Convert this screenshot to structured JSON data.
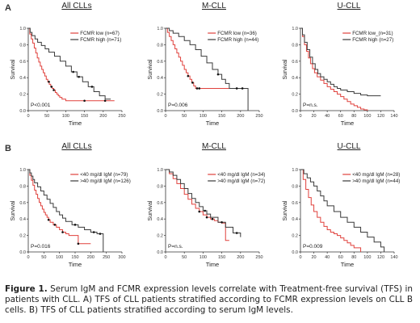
{
  "row_labels": [
    "A",
    "B"
  ],
  "caption": {
    "lead": "Figure 1.",
    "text": " Serum IgM and FCMR expression levels correlate with Treatment-free survival (TFS) in patients with CLL. A) TFS of CLL patients stratified according to FCMR expression levels on CLL B cells. B) TFS of CLL patients stratified according to serum IgM levels."
  },
  "colors": {
    "red": "#e0413c",
    "dark": "#3a3a3a"
  },
  "chart_data": [
    {
      "type": "line",
      "row": 0,
      "col": 0,
      "title": "All CLLs",
      "xlabel": "Time",
      "ylabel": "Survival",
      "xlim": [
        0,
        250
      ],
      "ylim": [
        0,
        1.0
      ],
      "xticks": [
        0,
        50,
        100,
        150,
        200,
        250
      ],
      "yticks": [
        0,
        0.2,
        0.4,
        0.6,
        0.8,
        1.0
      ],
      "pvalue": "P<0.001",
      "legend_position": "top-right",
      "series": [
        {
          "name": "FCMR low (n=67)",
          "color": "red",
          "x": [
            0,
            4,
            8,
            12,
            16,
            20,
            24,
            28,
            32,
            36,
            40,
            44,
            48,
            52,
            56,
            60,
            64,
            68,
            72,
            76,
            80,
            84,
            90,
            100,
            230
          ],
          "y": [
            1.0,
            0.93,
            0.87,
            0.82,
            0.76,
            0.7,
            0.64,
            0.59,
            0.54,
            0.5,
            0.46,
            0.42,
            0.38,
            0.35,
            0.32,
            0.29,
            0.27,
            0.25,
            0.22,
            0.2,
            0.18,
            0.16,
            0.14,
            0.12,
            0.12
          ],
          "censor_x": [
            55,
            62,
            68,
            150,
            205
          ]
        },
        {
          "name": "FCMR high (n=71)",
          "color": "dark",
          "x": [
            0,
            5,
            10,
            18,
            25,
            35,
            45,
            55,
            70,
            85,
            100,
            115,
            130,
            145,
            160,
            175,
            190,
            205,
            220
          ],
          "y": [
            1.0,
            0.95,
            0.91,
            0.87,
            0.83,
            0.79,
            0.75,
            0.71,
            0.66,
            0.6,
            0.54,
            0.47,
            0.41,
            0.35,
            0.29,
            0.23,
            0.18,
            0.14,
            0.14
          ],
          "censor_x": [
            120,
            135,
            170
          ]
        }
      ]
    },
    {
      "type": "line",
      "row": 0,
      "col": 1,
      "title": "M-CLL",
      "xlabel": "Time",
      "ylabel": "Survival",
      "xlim": [
        0,
        250
      ],
      "ylim": [
        0,
        1.0
      ],
      "xticks": [
        0,
        50,
        100,
        150,
        200,
        250
      ],
      "yticks": [
        0,
        0.2,
        0.4,
        0.6,
        0.8,
        1.0
      ],
      "pvalue": "P=0.006",
      "legend_position": "top-right",
      "series": [
        {
          "name": "FCMR low (n=36)",
          "color": "red",
          "x": [
            0,
            5,
            10,
            15,
            20,
            25,
            30,
            35,
            40,
            45,
            50,
            55,
            60,
            65,
            70,
            75,
            80,
            85,
            90,
            200
          ],
          "y": [
            1.0,
            0.95,
            0.9,
            0.85,
            0.8,
            0.75,
            0.7,
            0.65,
            0.6,
            0.55,
            0.5,
            0.46,
            0.42,
            0.38,
            0.34,
            0.3,
            0.27,
            0.27,
            0.27,
            0.27
          ],
          "censor_x": [
            60,
            72,
            84,
            90
          ]
        },
        {
          "name": "FCMR high (n=44)",
          "color": "dark",
          "x": [
            0,
            10,
            20,
            35,
            50,
            65,
            80,
            95,
            110,
            125,
            140,
            150,
            160,
            170,
            185,
            200,
            215,
            220
          ],
          "y": [
            1.0,
            0.97,
            0.94,
            0.9,
            0.85,
            0.8,
            0.74,
            0.66,
            0.58,
            0.5,
            0.44,
            0.38,
            0.33,
            0.27,
            0.27,
            0.27,
            0.27,
            0.0
          ],
          "censor_x": [
            140,
            190,
            205
          ]
        }
      ]
    },
    {
      "type": "line",
      "row": 0,
      "col": 2,
      "title": "U-CLL",
      "xlabel": "Time",
      "ylabel": "Survival",
      "xlim": [
        0,
        140
      ],
      "ylim": [
        0,
        1.0
      ],
      "xticks": [
        0,
        20,
        40,
        60,
        80,
        100,
        120,
        140
      ],
      "yticks": [
        0,
        0.2,
        0.4,
        0.6,
        0.8,
        1.0
      ],
      "pvalue": "P=n.s.",
      "legend_position": "top-right",
      "series": [
        {
          "name": "FCMR low_(n=31)",
          "color": "red",
          "x": [
            0,
            3,
            6,
            9,
            12,
            15,
            18,
            21,
            25,
            30,
            35,
            40,
            45,
            50,
            55,
            60,
            65,
            70,
            75,
            80,
            85,
            90,
            95,
            100
          ],
          "y": [
            1.0,
            0.9,
            0.8,
            0.72,
            0.64,
            0.57,
            0.51,
            0.46,
            0.41,
            0.37,
            0.33,
            0.29,
            0.26,
            0.23,
            0.2,
            0.17,
            0.14,
            0.11,
            0.08,
            0.06,
            0.04,
            0.02,
            0.01,
            0.0
          ],
          "censor_x": []
        },
        {
          "name": "FCMR high (n=27)",
          "color": "dark",
          "x": [
            0,
            3,
            6,
            10,
            14,
            18,
            22,
            26,
            30,
            35,
            40,
            45,
            50,
            55,
            60,
            70,
            80,
            90,
            100,
            120
          ],
          "y": [
            1.0,
            0.92,
            0.83,
            0.74,
            0.65,
            0.57,
            0.5,
            0.45,
            0.41,
            0.38,
            0.35,
            0.32,
            0.29,
            0.27,
            0.25,
            0.23,
            0.21,
            0.19,
            0.18,
            0.18
          ],
          "censor_x": []
        }
      ]
    },
    {
      "type": "line",
      "row": 1,
      "col": 0,
      "title": "All CLLs",
      "xlabel": "Time",
      "ylabel": "Survival",
      "xlim": [
        0,
        300
      ],
      "ylim": [
        0,
        1.0
      ],
      "xticks": [
        0,
        50,
        100,
        150,
        200,
        250,
        300
      ],
      "yticks": [
        0,
        0.2,
        0.4,
        0.6,
        0.8,
        1.0
      ],
      "pvalue": "P=0.016",
      "legend_position": "top-right",
      "series": [
        {
          "name": "<40 mg/dl IgM (n=79)",
          "color": "red",
          "x": [
            0,
            5,
            10,
            15,
            20,
            25,
            30,
            35,
            40,
            45,
            50,
            55,
            60,
            65,
            70,
            80,
            90,
            100,
            110,
            120,
            130,
            140,
            160,
            190,
            200
          ],
          "y": [
            1.0,
            0.93,
            0.87,
            0.81,
            0.75,
            0.7,
            0.65,
            0.6,
            0.56,
            0.52,
            0.48,
            0.45,
            0.42,
            0.39,
            0.36,
            0.33,
            0.3,
            0.27,
            0.24,
            0.22,
            0.2,
            0.2,
            0.1,
            0.1,
            0.1
          ],
          "censor_x": [
            65,
            85,
            110,
            160
          ]
        },
        {
          "name": ">40 mg/dl IgM (n=126)",
          "color": "dark",
          "x": [
            0,
            5,
            10,
            15,
            20,
            30,
            40,
            50,
            60,
            70,
            80,
            90,
            100,
            110,
            120,
            140,
            160,
            180,
            200,
            220,
            240
          ],
          "y": [
            1.0,
            0.96,
            0.92,
            0.88,
            0.84,
            0.79,
            0.74,
            0.69,
            0.64,
            0.59,
            0.54,
            0.49,
            0.45,
            0.41,
            0.37,
            0.33,
            0.3,
            0.27,
            0.24,
            0.22,
            0.0
          ],
          "censor_x": [
            150,
            210,
            230
          ]
        }
      ]
    },
    {
      "type": "line",
      "row": 1,
      "col": 1,
      "title": "M-CLL",
      "xlabel": "Time",
      "ylabel": "Survival",
      "xlim": [
        0,
        250
      ],
      "ylim": [
        0,
        1.0
      ],
      "xticks": [
        0,
        50,
        100,
        150,
        200,
        250
      ],
      "yticks": [
        0,
        0.2,
        0.4,
        0.6,
        0.8,
        1.0
      ],
      "pvalue": "P=n.s.",
      "legend_position": "top-right",
      "series": [
        {
          "name": "<40 mg/dl IgM (n=34)",
          "color": "red",
          "x": [
            0,
            10,
            20,
            30,
            40,
            50,
            60,
            70,
            80,
            90,
            100,
            110,
            120,
            130,
            140,
            150,
            160,
            170
          ],
          "y": [
            1.0,
            0.95,
            0.89,
            0.83,
            0.77,
            0.7,
            0.64,
            0.58,
            0.53,
            0.49,
            0.45,
            0.42,
            0.4,
            0.38,
            0.36,
            0.35,
            0.14,
            0.14
          ],
          "censor_x": [
            90,
            110,
            125
          ]
        },
        {
          "name": ">40 mg/dl IgM (n=72)",
          "color": "dark",
          "x": [
            0,
            10,
            20,
            30,
            40,
            50,
            60,
            70,
            80,
            90,
            100,
            110,
            120,
            140,
            160,
            180,
            200
          ],
          "y": [
            1.0,
            0.97,
            0.93,
            0.88,
            0.83,
            0.77,
            0.71,
            0.65,
            0.6,
            0.55,
            0.5,
            0.46,
            0.42,
            0.36,
            0.3,
            0.23,
            0.18
          ],
          "censor_x": [
            105,
            150,
            190
          ]
        }
      ]
    },
    {
      "type": "line",
      "row": 1,
      "col": 2,
      "title": "U-CLL",
      "xlabel": "Time",
      "ylabel": "Survival",
      "xlim": [
        0,
        140
      ],
      "ylim": [
        0,
        1.0
      ],
      "xticks": [
        0,
        20,
        40,
        60,
        80,
        100,
        120,
        140
      ],
      "yticks": [
        0,
        0.2,
        0.4,
        0.6,
        0.8,
        1.0
      ],
      "pvalue": "P=0.009",
      "legend_position": "top-right",
      "series": [
        {
          "name": "<40 mg/dl IgM (n=28)",
          "color": "red",
          "x": [
            0,
            4,
            8,
            12,
            16,
            20,
            25,
            30,
            35,
            40,
            45,
            50,
            55,
            60,
            65,
            70,
            75,
            80,
            90
          ],
          "y": [
            1.0,
            0.88,
            0.76,
            0.66,
            0.57,
            0.49,
            0.42,
            0.36,
            0.31,
            0.27,
            0.24,
            0.22,
            0.2,
            0.17,
            0.14,
            0.11,
            0.08,
            0.05,
            0.0
          ],
          "censor_x": []
        },
        {
          "name": ">40 mg/dl IgM (n=44)",
          "color": "dark",
          "x": [
            0,
            5,
            10,
            15,
            20,
            25,
            30,
            35,
            40,
            50,
            60,
            70,
            80,
            90,
            100,
            110,
            120,
            125
          ],
          "y": [
            1.0,
            0.95,
            0.9,
            0.85,
            0.8,
            0.74,
            0.68,
            0.62,
            0.56,
            0.49,
            0.42,
            0.36,
            0.3,
            0.24,
            0.18,
            0.12,
            0.06,
            0.0
          ],
          "censor_x": []
        }
      ]
    }
  ]
}
